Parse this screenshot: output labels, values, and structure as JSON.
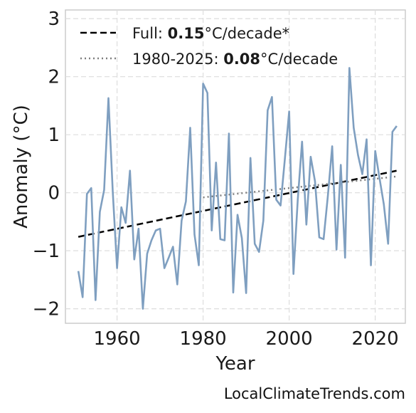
{
  "chart_data": {
    "type": "line",
    "xlabel": "Year",
    "ylabel": "Anomaly (°C)",
    "xlim": [
      1948,
      2027
    ],
    "ylim": [
      -2.25,
      3.15
    ],
    "x_ticks": [
      {
        "value": 1960,
        "label": "1960"
      },
      {
        "value": 1980,
        "label": "1980"
      },
      {
        "value": 2000,
        "label": "2000"
      },
      {
        "value": 2020,
        "label": "2020"
      }
    ],
    "y_ticks": [
      {
        "value": -2,
        "label": "−2"
      },
      {
        "value": -1,
        "label": "−1"
      },
      {
        "value": 0,
        "label": "0"
      },
      {
        "value": 1,
        "label": "1"
      },
      {
        "value": 2,
        "label": "2"
      },
      {
        "value": 3,
        "label": "3"
      }
    ],
    "grid": true,
    "legend_position": "top-left",
    "series": [
      {
        "color": "#7f9fc0",
        "x": [
          1951,
          1952,
          1953,
          1954,
          1955,
          1956,
          1957,
          1958,
          1959,
          1960,
          1961,
          1962,
          1963,
          1964,
          1965,
          1966,
          1967,
          1968,
          1969,
          1970,
          1971,
          1972,
          1973,
          1974,
          1975,
          1976,
          1977,
          1978,
          1979,
          1980,
          1981,
          1982,
          1983,
          1984,
          1985,
          1986,
          1987,
          1988,
          1989,
          1990,
          1991,
          1992,
          1993,
          1994,
          1995,
          1996,
          1997,
          1998,
          1999,
          2000,
          2001,
          2002,
          2003,
          2004,
          2005,
          2006,
          2007,
          2008,
          2009,
          2010,
          2011,
          2012,
          2013,
          2014,
          2015,
          2016,
          2017,
          2018,
          2019,
          2020,
          2021,
          2022,
          2023,
          2024,
          2025
        ],
        "y": [
          -1.35,
          -1.8,
          -0.02,
          0.08,
          -1.85,
          -0.33,
          0.05,
          1.63,
          0.02,
          -1.3,
          -0.25,
          -0.52,
          0.38,
          -1.15,
          -0.62,
          -2.0,
          -1.05,
          -0.82,
          -0.65,
          -0.62,
          -1.3,
          -1.12,
          -0.93,
          -1.58,
          -0.48,
          -0.15,
          1.12,
          -0.72,
          -1.25,
          1.88,
          1.72,
          -0.65,
          0.52,
          -0.8,
          -0.82,
          1.02,
          -1.72,
          -0.38,
          -0.78,
          -1.73,
          0.6,
          -0.88,
          -1.02,
          -0.48,
          1.42,
          1.65,
          -0.12,
          -0.22,
          0.58,
          1.4,
          -1.4,
          -0.12,
          0.88,
          -0.55,
          0.62,
          0.2,
          -0.77,
          -0.8,
          -0.05,
          0.8,
          -0.98,
          0.48,
          -1.12,
          2.15,
          1.12,
          0.65,
          0.32,
          0.92,
          -1.25,
          0.72,
          0.25,
          -0.2,
          -0.88,
          1.05,
          1.15
        ]
      }
    ],
    "trend_lines": [
      {
        "legend_prefix": "Full: ",
        "legend_value": "0.15",
        "legend_suffix": "°C/decade*",
        "color": "#000000",
        "style": "dashed",
        "x": [
          1951,
          2025
        ],
        "y": [
          -0.76,
          0.38
        ]
      },
      {
        "legend_prefix": "1980-2025: ",
        "legend_value": "0.08",
        "legend_suffix": "°C/decade",
        "color": "#7f7f7f",
        "style": "dotted",
        "x": [
          1980,
          2025
        ],
        "y": [
          -0.08,
          0.28
        ]
      }
    ]
  },
  "credit": "LocalClimateTrends.com"
}
